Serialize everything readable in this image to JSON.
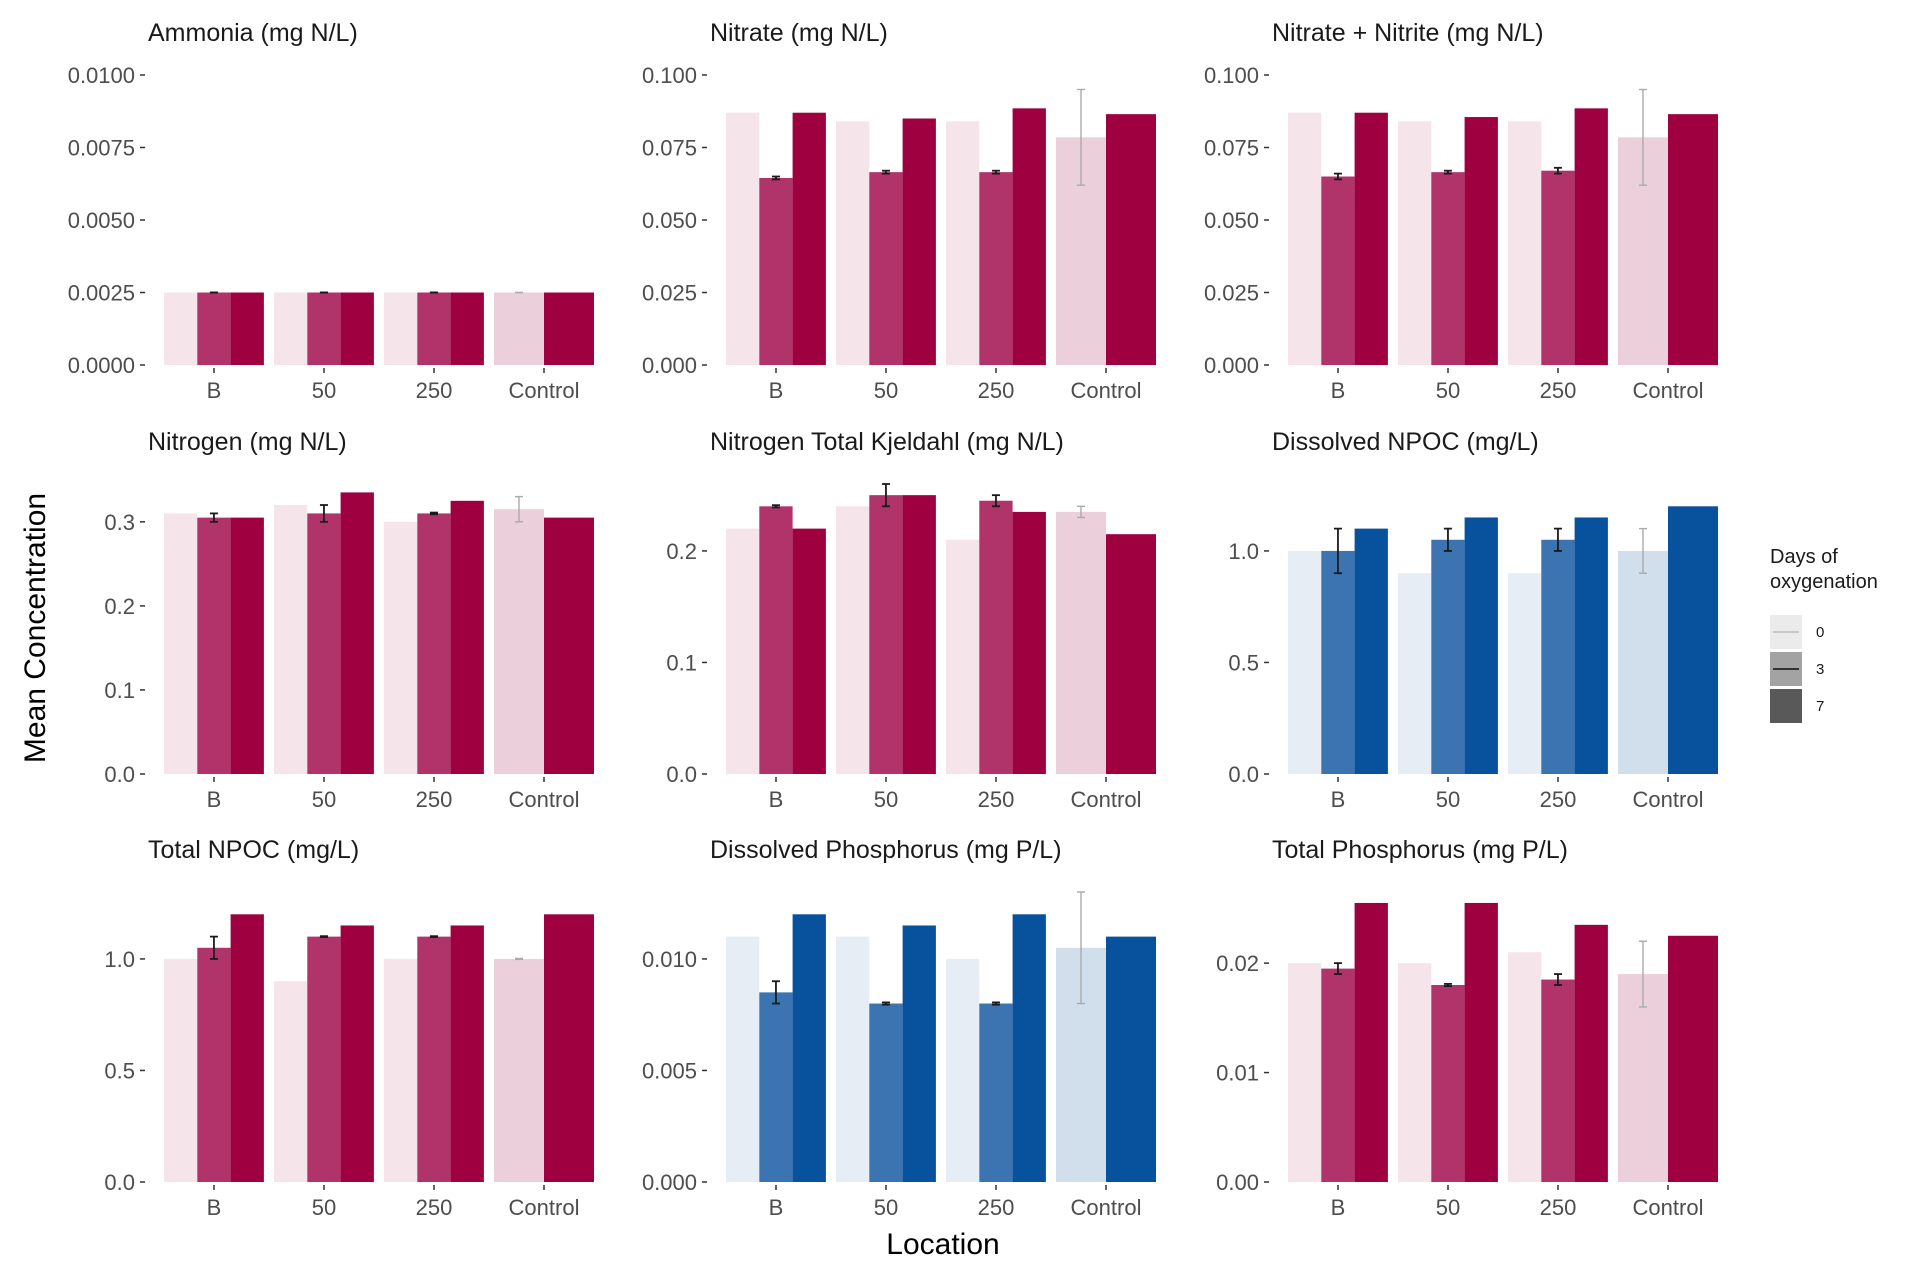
{
  "figure": {
    "y_axis_label": "Mean Concentration",
    "x_axis_label": "Location"
  },
  "legend": {
    "title": "Days of oxygenation",
    "items": [
      "0",
      "3",
      "7"
    ]
  },
  "colors": {
    "red": {
      "d0": "#f5e4ea",
      "d3": "#b0336a",
      "d7": "#9e0040",
      "control0": "#ebcfda"
    },
    "blue": {
      "d0": "#e7edf5",
      "d3": "#3c73b1",
      "d7": "#08519c",
      "control0": "#d1dfec"
    },
    "errorbar": "#1a1a1a",
    "errorbar_control": "#aaaaaa",
    "tick": "#333333",
    "tick_label": "#4d4d4d",
    "text": "#1a1a1a"
  },
  "chart_data": [
    {
      "type": "bar",
      "title": "Ammonia (mg N/L)",
      "palette": "red",
      "categories": [
        "B",
        "50",
        "250",
        "Control"
      ],
      "yticks": [
        "0.0000",
        "0.0025",
        "0.0050",
        "0.0075",
        "0.0100"
      ],
      "ylim": [
        0,
        0.01
      ],
      "series": [
        {
          "name": "0",
          "values": [
            0.0025,
            0.0025,
            0.0025,
            0.0025
          ],
          "errors": [
            null,
            null,
            null,
            [
              0.0025,
              0.0025
            ]
          ]
        },
        {
          "name": "3",
          "values": [
            0.0025,
            0.0025,
            0.0025,
            null
          ],
          "errors": [
            [
              0.0025,
              0.0025
            ],
            [
              0.0025,
              0.0025
            ],
            [
              0.0025,
              0.0025
            ],
            null
          ]
        },
        {
          "name": "7",
          "values": [
            0.0025,
            0.0025,
            0.0025,
            0.0025
          ],
          "errors": [
            null,
            null,
            null,
            null
          ]
        }
      ]
    },
    {
      "type": "bar",
      "title": "Nitrate (mg N/L)",
      "palette": "red",
      "categories": [
        "B",
        "50",
        "250",
        "Control"
      ],
      "yticks": [
        "0.000",
        "0.025",
        "0.050",
        "0.075",
        "0.100"
      ],
      "ylim": [
        0,
        0.1
      ],
      "series": [
        {
          "name": "0",
          "values": [
            0.087,
            0.084,
            0.084,
            0.0785
          ],
          "errors": [
            null,
            null,
            null,
            [
              0.062,
              0.095
            ]
          ]
        },
        {
          "name": "3",
          "values": [
            0.0645,
            0.0665,
            0.0665,
            null
          ],
          "errors": [
            [
              0.064,
              0.065
            ],
            [
              0.066,
              0.067
            ],
            [
              0.066,
              0.067
            ],
            null
          ]
        },
        {
          "name": "7",
          "values": [
            0.087,
            0.085,
            0.0885,
            0.0865
          ],
          "errors": [
            null,
            null,
            null,
            null
          ]
        }
      ]
    },
    {
      "type": "bar",
      "title": "Nitrate + Nitrite (mg N/L)",
      "palette": "red",
      "categories": [
        "B",
        "50",
        "250",
        "Control"
      ],
      "yticks": [
        "0.000",
        "0.025",
        "0.050",
        "0.075",
        "0.100"
      ],
      "ylim": [
        0,
        0.1
      ],
      "series": [
        {
          "name": "0",
          "values": [
            0.087,
            0.084,
            0.084,
            0.0785
          ],
          "errors": [
            null,
            null,
            null,
            [
              0.062,
              0.095
            ]
          ]
        },
        {
          "name": "3",
          "values": [
            0.065,
            0.0665,
            0.067,
            null
          ],
          "errors": [
            [
              0.064,
              0.066
            ],
            [
              0.066,
              0.067
            ],
            [
              0.066,
              0.068
            ],
            null
          ]
        },
        {
          "name": "7",
          "values": [
            0.087,
            0.0855,
            0.0885,
            0.0865
          ],
          "errors": [
            null,
            null,
            null,
            null
          ]
        }
      ]
    },
    {
      "type": "bar",
      "title": "Nitrogen (mg N/L)",
      "palette": "red",
      "categories": [
        "B",
        "50",
        "250",
        "Control"
      ],
      "yticks": [
        "0.0",
        "0.1",
        "0.2",
        "0.3"
      ],
      "ylim": [
        0,
        0.345
      ],
      "series": [
        {
          "name": "0",
          "values": [
            0.31,
            0.32,
            0.3,
            0.315
          ],
          "errors": [
            null,
            null,
            null,
            [
              0.3,
              0.33
            ]
          ]
        },
        {
          "name": "3",
          "values": [
            0.305,
            0.31,
            0.31,
            null
          ],
          "errors": [
            [
              0.3,
              0.31
            ],
            [
              0.3,
              0.32
            ],
            [
              0.309,
              0.311
            ],
            null
          ]
        },
        {
          "name": "7",
          "values": [
            0.305,
            0.335,
            0.325,
            0.305
          ],
          "errors": [
            null,
            null,
            null,
            null
          ]
        }
      ]
    },
    {
      "type": "bar",
      "title": "Nitrogen Total Kjeldahl (mg N/L)",
      "palette": "red",
      "categories": [
        "B",
        "50",
        "250",
        "Control"
      ],
      "yticks": [
        "0.0",
        "0.1",
        "0.2"
      ],
      "ylim": [
        0,
        0.26
      ],
      "series": [
        {
          "name": "0",
          "values": [
            0.22,
            0.24,
            0.21,
            0.235
          ],
          "errors": [
            null,
            null,
            null,
            [
              0.23,
              0.24
            ]
          ]
        },
        {
          "name": "3",
          "values": [
            0.24,
            0.25,
            0.245,
            null
          ],
          "errors": [
            [
              0.239,
              0.241
            ],
            [
              0.24,
              0.26
            ],
            [
              0.24,
              0.25
            ],
            null
          ]
        },
        {
          "name": "7",
          "values": [
            0.22,
            0.25,
            0.235,
            0.215
          ],
          "errors": [
            null,
            null,
            null,
            null
          ]
        }
      ]
    },
    {
      "type": "bar",
      "title": "Dissolved NPOC (mg/L)",
      "palette": "blue",
      "categories": [
        "B",
        "50",
        "250",
        "Control"
      ],
      "yticks": [
        "0.0",
        "0.5",
        "1.0"
      ],
      "ylim": [
        0,
        1.3
      ],
      "series": [
        {
          "name": "0",
          "values": [
            1.0,
            0.9,
            0.9,
            1.0
          ],
          "errors": [
            null,
            null,
            null,
            [
              0.9,
              1.1
            ]
          ]
        },
        {
          "name": "3",
          "values": [
            1.0,
            1.05,
            1.05,
            null
          ],
          "errors": [
            [
              0.9,
              1.1
            ],
            [
              1.0,
              1.1
            ],
            [
              1.0,
              1.1
            ],
            null
          ]
        },
        {
          "name": "7",
          "values": [
            1.1,
            1.15,
            1.15,
            1.2
          ],
          "errors": [
            null,
            null,
            null,
            null
          ]
        }
      ]
    },
    {
      "type": "bar",
      "title": "Total NPOC (mg/L)",
      "palette": "red",
      "categories": [
        "B",
        "50",
        "250",
        "Control"
      ],
      "yticks": [
        "0.0",
        "0.5",
        "1.0"
      ],
      "ylim": [
        0,
        1.3
      ],
      "series": [
        {
          "name": "0",
          "values": [
            1.0,
            0.9,
            1.0,
            1.0
          ],
          "errors": [
            null,
            null,
            null,
            [
              0.998,
              1.002
            ]
          ]
        },
        {
          "name": "3",
          "values": [
            1.05,
            1.1,
            1.1,
            null
          ],
          "errors": [
            [
              1.0,
              1.1
            ],
            [
              1.098,
              1.102
            ],
            [
              1.098,
              1.102
            ],
            null
          ]
        },
        {
          "name": "7",
          "values": [
            1.2,
            1.15,
            1.15,
            1.2
          ],
          "errors": [
            null,
            null,
            null,
            null
          ]
        }
      ]
    },
    {
      "type": "bar",
      "title": "Dissolved Phosphorus (mg P/L)",
      "palette": "blue",
      "categories": [
        "B",
        "50",
        "250",
        "Control"
      ],
      "yticks": [
        "0.000",
        "0.005",
        "0.010"
      ],
      "ylim": [
        0,
        0.013
      ],
      "series": [
        {
          "name": "0",
          "values": [
            0.011,
            0.011,
            0.01,
            0.0105
          ],
          "errors": [
            null,
            null,
            null,
            [
              0.008,
              0.013
            ]
          ]
        },
        {
          "name": "3",
          "values": [
            0.0085,
            0.008,
            0.008,
            null
          ],
          "errors": [
            [
              0.008,
              0.009
            ],
            [
              0.00795,
              0.00805
            ],
            [
              0.00795,
              0.00805
            ],
            null
          ]
        },
        {
          "name": "7",
          "values": [
            0.012,
            0.0115,
            0.012,
            0.011
          ],
          "errors": [
            null,
            null,
            null,
            null
          ]
        }
      ]
    },
    {
      "type": "bar",
      "title": "Total Phosphorus (mg P/L)",
      "palette": "red",
      "categories": [
        "B",
        "50",
        "250",
        "Control"
      ],
      "yticks": [
        "0.00",
        "0.01",
        "0.02"
      ],
      "ylim": [
        0,
        0.0265
      ],
      "series": [
        {
          "name": "0",
          "values": [
            0.02,
            0.02,
            0.021,
            0.019
          ],
          "errors": [
            null,
            null,
            null,
            [
              0.016,
              0.022
            ]
          ]
        },
        {
          "name": "3",
          "values": [
            0.0195,
            0.018,
            0.0185,
            null
          ],
          "errors": [
            [
              0.019,
              0.02
            ],
            [
              0.0179,
              0.0181
            ],
            [
              0.018,
              0.019
            ],
            null
          ]
        },
        {
          "name": "7",
          "values": [
            0.0255,
            0.0255,
            0.0235,
            0.0225
          ],
          "errors": [
            null,
            null,
            null,
            null
          ]
        }
      ]
    }
  ]
}
